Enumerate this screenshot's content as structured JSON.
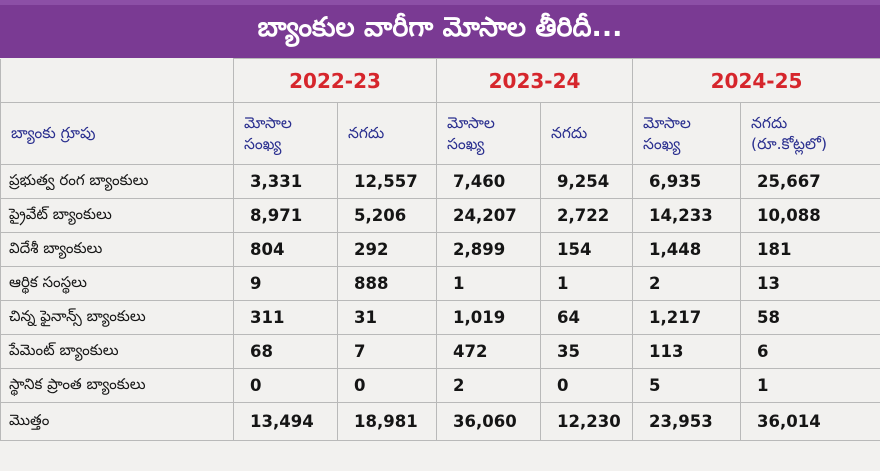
{
  "title": "బ్యాంకుల వారీగా మోసాల తీరిదీ...",
  "header": {
    "years": [
      "2022-23",
      "2023-24",
      "2024-25"
    ],
    "group_label": "బ్యాంకు గ్రూపు",
    "sub_headers": [
      "మోసాల\nసంఖ్య",
      "నగదు",
      "మోసాల\nసంఖ్య",
      "నగదు",
      "మోసాల\nసంఖ్య",
      "నగదు\n(రూ.కోట్లలో)"
    ]
  },
  "rows": [
    {
      "bank": "ప్రభుత్వ రంగ బ్యాంకులు",
      "values": [
        "3,331",
        "12,557",
        "7,460",
        "9,254",
        "6,935",
        "25,667"
      ]
    },
    {
      "bank": "ప్రైవేట్ బ్యాంకులు",
      "values": [
        "8,971",
        "5,206",
        "24,207",
        "2,722",
        "14,233",
        "10,088"
      ]
    },
    {
      "bank": "విదేశీ బ్యాంకులు",
      "values": [
        "804",
        "292",
        "2,899",
        "154",
        "1,448",
        "181"
      ]
    },
    {
      "bank": "ఆర్థిక సంస్థలు",
      "values": [
        "9",
        "888",
        "1",
        "1",
        "2",
        "13"
      ]
    },
    {
      "bank": "చిన్న ఫైనాన్స్ బ్యాంకులు",
      "values": [
        "311",
        "31",
        "1,019",
        "64",
        "1,217",
        "58"
      ]
    },
    {
      "bank": "పేమెంట్ బ్యాంకులు",
      "values": [
        "68",
        "7",
        "472",
        "35",
        "113",
        "6"
      ]
    },
    {
      "bank": "స్థానిక ప్రాంత బ్యాంకులు",
      "values": [
        "0",
        "0",
        "2",
        "0",
        "5",
        "1"
      ]
    },
    {
      "bank": "మొత్తం",
      "values": [
        "13,494",
        "18,981",
        "36,060",
        "12,230",
        "23,953",
        "36,014"
      ]
    }
  ],
  "colors": {
    "banner": "#7a3a93",
    "year_text": "#d6262c",
    "subheader_text": "#2a2f8f",
    "table_bg": "#f2f1ef"
  }
}
